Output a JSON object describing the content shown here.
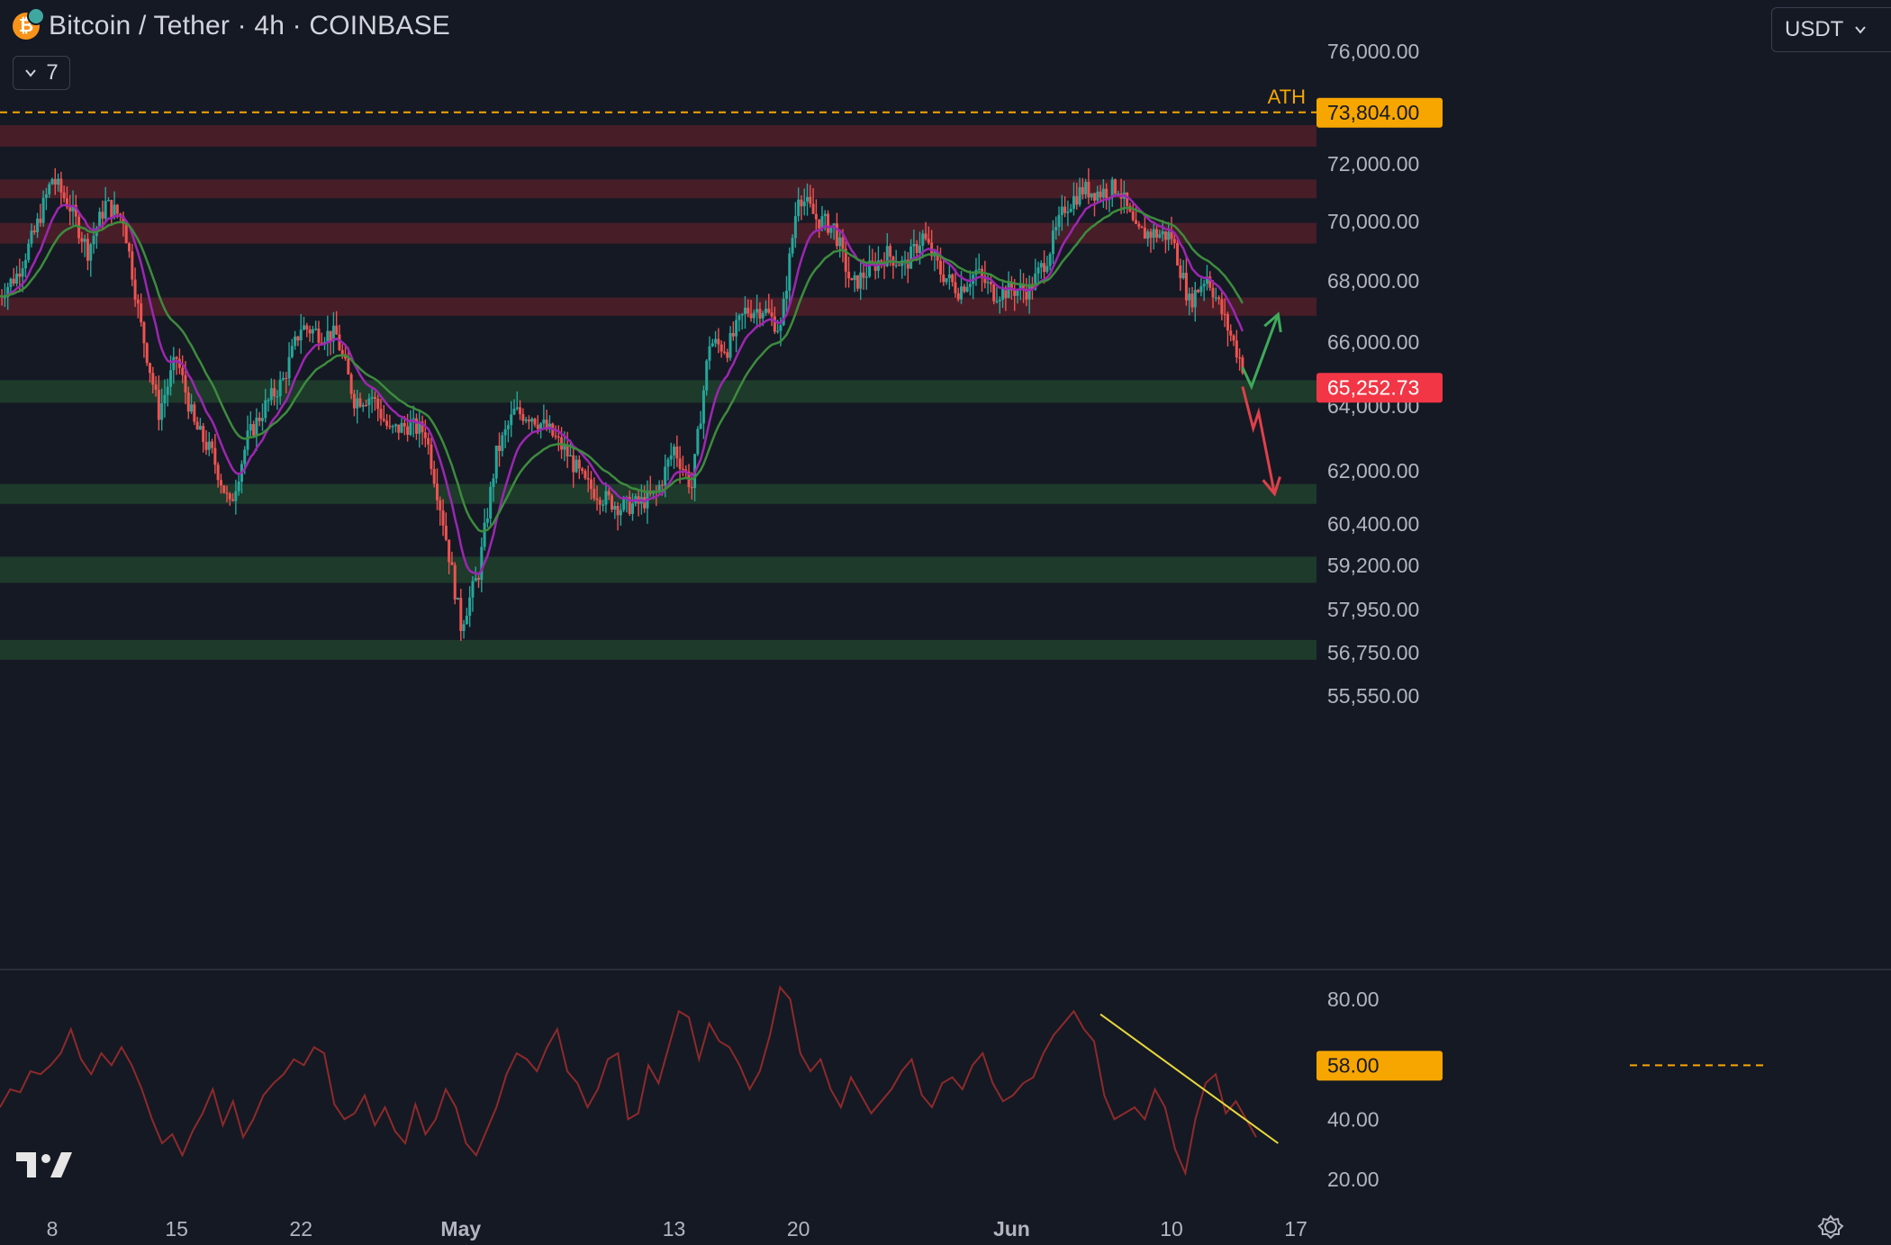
{
  "header": {
    "title": "Bitcoin / Tether · 4h · COINBASE",
    "indicator_count": "7",
    "currency": "USDT"
  },
  "colors": {
    "background": "#151924",
    "up": "#26a69a",
    "down": "#ef5350",
    "ema_fast": "#9c27b0",
    "ema_slow": "#3d8b3d",
    "resistance_zone": "#4a1f29",
    "support_zone": "#1f3c2c",
    "ath_line": "#f7a600",
    "rsi_line": "#8e2a2a",
    "trendline": "#e8d83a"
  },
  "chart_data": [
    {
      "type": "candlestick",
      "symbol": "Bitcoin / Tether",
      "interval": "4h",
      "exchange": "COINBASE",
      "price_axis_ticks": [
        "76,000.00",
        "72,000.00",
        "70,000.00",
        "68,000.00",
        "66,000.00",
        "64,000.00",
        "62,000.00",
        "60,400.00",
        "59,200.00",
        "57,950.00",
        "56,750.00",
        "55,550.00"
      ],
      "price_scale": "log",
      "ylim": [
        55000,
        77000
      ],
      "time_axis_ticks": [
        "8",
        "15",
        "22",
        "May",
        "13",
        "20",
        "Jun",
        "10",
        "17"
      ],
      "ath": {
        "label": "ATH",
        "value": 73804,
        "value_label": "73,804.00"
      },
      "current_price": {
        "value": 65252.73,
        "label": "65,252.73"
      },
      "resistance_zones": [
        [
          72600,
          73350
        ],
        [
          70800,
          71450
        ],
        [
          69250,
          69950
        ],
        [
          66850,
          67450
        ]
      ],
      "support_zones": [
        [
          64100,
          64800
        ],
        [
          61000,
          61600
        ],
        [
          58700,
          59450
        ],
        [
          56550,
          57100
        ]
      ],
      "close_path": [
        {
          "t": "Apr 5",
          "p": 67500
        },
        {
          "t": "Apr 6",
          "p": 68200
        },
        {
          "t": "Apr 7",
          "p": 69600
        },
        {
          "t": "Apr 8",
          "p": 71500
        },
        {
          "t": "Apr 9",
          "p": 70500
        },
        {
          "t": "Apr 10",
          "p": 69000
        },
        {
          "t": "Apr 11",
          "p": 70600
        },
        {
          "t": "Apr 12",
          "p": 70100
        },
        {
          "t": "Apr 13",
          "p": 66500
        },
        {
          "t": "Apr 14",
          "p": 63800
        },
        {
          "t": "Apr 15",
          "p": 65500
        },
        {
          "t": "Apr 16",
          "p": 63400
        },
        {
          "t": "Apr 17",
          "p": 62500
        },
        {
          "t": "Apr 18",
          "p": 60900
        },
        {
          "t": "Apr 19",
          "p": 63000
        },
        {
          "t": "Apr 20",
          "p": 64000
        },
        {
          "t": "Apr 21",
          "p": 64800
        },
        {
          "t": "Apr 22",
          "p": 66500
        },
        {
          "t": "Apr 23",
          "p": 66300
        },
        {
          "t": "Apr 24",
          "p": 66200
        },
        {
          "t": "Apr 25",
          "p": 64200
        },
        {
          "t": "Apr 26",
          "p": 64300
        },
        {
          "t": "Apr 27",
          "p": 63200
        },
        {
          "t": "Apr 28",
          "p": 63400
        },
        {
          "t": "Apr 29",
          "p": 63200
        },
        {
          "t": "Apr 30",
          "p": 60500
        },
        {
          "t": "May 1",
          "p": 57500
        },
        {
          "t": "May 2",
          "p": 59000
        },
        {
          "t": "May 3",
          "p": 62500
        },
        {
          "t": "May 4",
          "p": 63800
        },
        {
          "t": "May 5",
          "p": 63700
        },
        {
          "t": "May 6",
          "p": 63200
        },
        {
          "t": "May 7",
          "p": 62500
        },
        {
          "t": "May 8",
          "p": 61600
        },
        {
          "t": "May 9",
          "p": 61200
        },
        {
          "t": "May 10",
          "p": 60900
        },
        {
          "t": "May 11",
          "p": 61000
        },
        {
          "t": "May 12",
          "p": 61300
        },
        {
          "t": "May 13",
          "p": 62700
        },
        {
          "t": "May 14",
          "p": 61500
        },
        {
          "t": "May 15",
          "p": 66000
        },
        {
          "t": "May 16",
          "p": 65800
        },
        {
          "t": "May 17",
          "p": 67000
        },
        {
          "t": "May 18",
          "p": 67100
        },
        {
          "t": "May 19",
          "p": 66400
        },
        {
          "t": "May 20",
          "p": 71000
        },
        {
          "t": "May 21",
          "p": 70100
        },
        {
          "t": "May 22",
          "p": 69800
        },
        {
          "t": "May 23",
          "p": 67800
        },
        {
          "t": "May 24",
          "p": 68400
        },
        {
          "t": "May 25",
          "p": 68900
        },
        {
          "t": "May 26",
          "p": 68500
        },
        {
          "t": "May 27",
          "p": 69500
        },
        {
          "t": "May 28",
          "p": 68300
        },
        {
          "t": "May 29",
          "p": 67700
        },
        {
          "t": "May 30",
          "p": 68300
        },
        {
          "t": "May 31",
          "p": 67600
        },
        {
          "t": "Jun 1",
          "p": 67700
        },
        {
          "t": "Jun 2",
          "p": 67700
        },
        {
          "t": "Jun 3",
          "p": 68800
        },
        {
          "t": "Jun 4",
          "p": 70500
        },
        {
          "t": "Jun 5",
          "p": 71100
        },
        {
          "t": "Jun 6",
          "p": 71000
        },
        {
          "t": "Jun 7",
          "p": 71200
        },
        {
          "t": "Jun 8",
          "p": 69600
        },
        {
          "t": "Jun 9",
          "p": 69600
        },
        {
          "t": "Jun 10",
          "p": 69500
        },
        {
          "t": "Jun 11",
          "p": 67300
        },
        {
          "t": "Jun 12",
          "p": 68200
        },
        {
          "t": "Jun 13",
          "p": 66700
        },
        {
          "t": "Jun 14",
          "p": 65252.73
        }
      ],
      "projections": [
        {
          "direction": "up",
          "color": "#3faa5a",
          "points": [
            {
              "t": "Jun 14",
              "p": 65200
            },
            {
              "t": "Jun 14.5",
              "p": 64600
            },
            {
              "t": "Jun 16",
              "p": 66900
            }
          ]
        },
        {
          "direction": "down",
          "color": "#e0404a",
          "points": [
            {
              "t": "Jun 14",
              "p": 64600
            },
            {
              "t": "Jun 14.6",
              "p": 63300
            },
            {
              "t": "Jun 14.9",
              "p": 63800
            },
            {
              "t": "Jun 15.8",
              "p": 61300
            }
          ]
        }
      ]
    },
    {
      "type": "line",
      "name": "RSI",
      "y_axis_ticks": [
        "80.00",
        "40.00",
        "20.00"
      ],
      "ylim": [
        15,
        88
      ],
      "level_marker": {
        "value": 58,
        "label": "58.00"
      },
      "values": [
        44,
        50,
        49,
        56,
        55,
        58,
        62,
        70,
        60,
        55,
        62,
        58,
        64,
        58,
        50,
        40,
        32,
        35,
        28,
        36,
        42,
        50,
        38,
        46,
        34,
        40,
        48,
        52,
        55,
        60,
        58,
        64,
        62,
        45,
        40,
        42,
        48,
        38,
        44,
        36,
        32,
        45,
        35,
        40,
        50,
        44,
        32,
        28,
        36,
        44,
        55,
        62,
        60,
        56,
        64,
        70,
        56,
        52,
        44,
        50,
        60,
        62,
        40,
        42,
        58,
        52,
        64,
        76,
        74,
        60,
        72,
        66,
        64,
        58,
        50,
        56,
        68,
        84,
        80,
        62,
        56,
        60,
        50,
        44,
        54,
        48,
        42,
        46,
        50,
        56,
        60,
        48,
        44,
        52,
        54,
        50,
        58,
        62,
        52,
        46,
        48,
        52,
        54,
        62,
        68,
        72,
        76,
        70,
        66,
        48,
        40,
        42,
        44,
        40,
        50,
        44,
        30,
        22,
        40,
        52,
        55,
        42,
        46,
        40,
        34
      ],
      "trendline": [
        {
          "t": "Jun 6",
          "v": 75
        },
        {
          "t": "Jun 16",
          "v": 32
        }
      ]
    }
  ]
}
